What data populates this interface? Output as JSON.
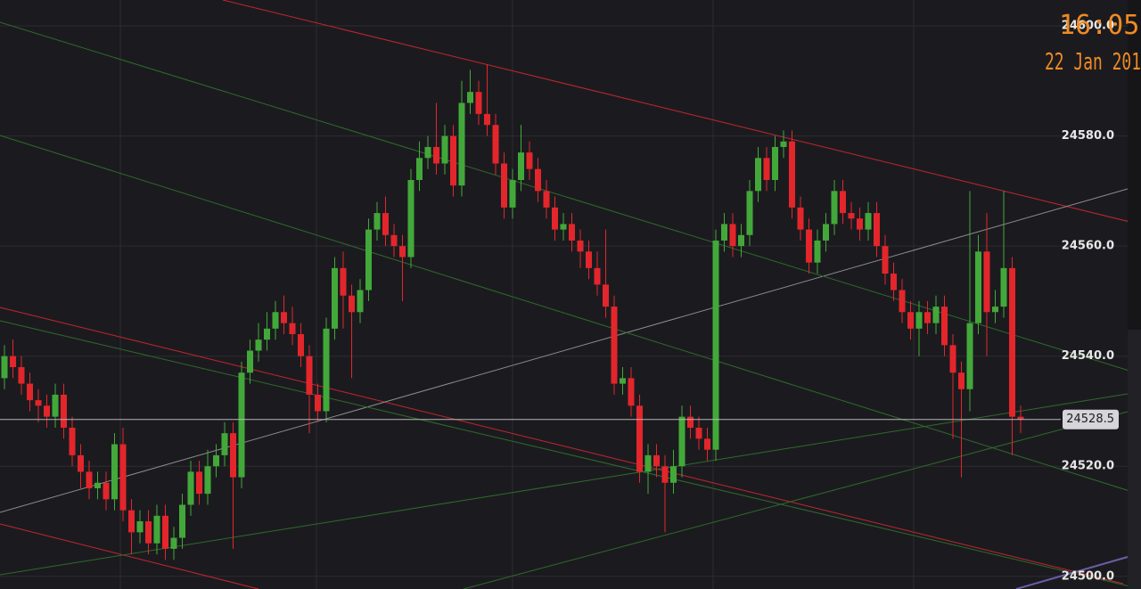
{
  "chart_data": {
    "type": "candlestick",
    "ylim": [
      24497.7,
      24604.7
    ],
    "yticks": [
      {
        "value": 24500,
        "label": "24500.0"
      },
      {
        "value": 24520,
        "label": "24520.0"
      },
      {
        "value": 24540,
        "label": "24540.0"
      },
      {
        "value": 24560,
        "label": "24560.0"
      },
      {
        "value": 24580,
        "label": "24580.0"
      },
      {
        "value": 24600,
        "label": "24600.0"
      }
    ],
    "grid": true,
    "up_color": "#43a83a",
    "down_color": "#e3262b",
    "last_price": 24528.5,
    "annotations": [
      "16:05",
      "22 Jan 201"
    ],
    "open": [
      24536,
      24540,
      24538,
      24535,
      24532,
      24531,
      24529,
      24533,
      24527,
      24522,
      24519,
      24516,
      24517,
      24514,
      24524,
      24512,
      24508,
      24510,
      24506,
      24511,
      24505,
      24507,
      24513,
      24519,
      24515,
      24520,
      24522,
      24526,
      24518,
      24537,
      24541,
      24543,
      24545,
      24548,
      24546,
      24544,
      24540,
      24533,
      24530,
      24545,
      24556,
      24551,
      24548,
      24552,
      24563,
      24566,
      24562,
      24560,
      24558,
      24572,
      24576,
      24578,
      24575,
      24580,
      24571,
      24586,
      24588,
      24584,
      24582,
      24575,
      24567,
      24572,
      24577,
      24574,
      24570,
      24567,
      24563,
      24564,
      24561,
      24559,
      24556,
      24553,
      24549,
      24535,
      24536,
      24531,
      24519,
      24522,
      24520,
      24517,
      24520,
      24529,
      24527,
      24525,
      24523,
      24561,
      24564,
      24560,
      24562,
      24570,
      24576,
      24572,
      24578,
      24579,
      24567,
      24563,
      24557,
      24561,
      24564,
      24570,
      24566,
      24565,
      24563,
      24566,
      24560,
      24555,
      24552,
      24548,
      24545,
      24548,
      24546,
      24549,
      24542,
      24537,
      24534,
      24546,
      24559,
      24548,
      24549,
      24556,
      24529
    ],
    "high": [
      24542,
      24543,
      24540,
      24537,
      24534,
      24533,
      24535,
      24535,
      24529,
      24524,
      24521,
      24519,
      24519,
      24526,
      24527,
      24514,
      24512,
      24512,
      24513,
      24513,
      24509,
      24515,
      24521,
      24521,
      24523,
      24524,
      24528,
      24528,
      24539,
      24543,
      24546,
      24548,
      24550,
      24551,
      24549,
      24546,
      24542,
      24535,
      24547,
      24558,
      24559,
      24553,
      24554,
      24565,
      24568,
      24569,
      24564,
      24562,
      24574,
      24579,
      24580,
      24586,
      24582,
      24582,
      24590,
      24592,
      24590,
      24593,
      24584,
      24577,
      24574,
      24582,
      24579,
      24576,
      24572,
      24569,
      24566,
      24566,
      24563,
      24561,
      24559,
      24563,
      24551,
      24538,
      24538,
      24533,
      24524,
      24524,
      24522,
      24523,
      24531,
      24531,
      24529,
      24527,
      24563,
      24566,
      24566,
      24564,
      24572,
      24578,
      24578,
      24580,
      24581,
      24581,
      24569,
      24565,
      24563,
      24566,
      24572,
      24572,
      24568,
      24567,
      24568,
      24568,
      24562,
      24557,
      24554,
      24550,
      24550,
      24550,
      24551,
      24551,
      24544,
      24539,
      24570,
      24562,
      24566,
      24552,
      24570,
      24558,
      24531
    ],
    "low": [
      24534,
      24536,
      24533,
      24530,
      24528,
      24527,
      24527,
      24525,
      24520,
      24516,
      24514,
      24514,
      24512,
      24512,
      24510,
      24504,
      24506,
      24504,
      24504,
      24503,
      24503,
      24505,
      24511,
      24513,
      24513,
      24518,
      24520,
      24505,
      24516,
      24535,
      24539,
      24541,
      24543,
      24544,
      24542,
      24538,
      24526,
      24528,
      24528,
      24543,
      24545,
      24536,
      24546,
      24550,
      24561,
      24560,
      24558,
      24550,
      24556,
      24570,
      24574,
      24573,
      24573,
      24569,
      24569,
      24584,
      24582,
      24580,
      24573,
      24565,
      24565,
      24570,
      24572,
      24568,
      24565,
      24561,
      24561,
      24559,
      24556,
      24554,
      24551,
      24547,
      24533,
      24533,
      24529,
      24517,
      24515,
      24518,
      24508,
      24515,
      24518,
      24525,
      24523,
      24521,
      24521,
      24559,
      24558,
      24558,
      24560,
      24568,
      24570,
      24570,
      24576,
      24565,
      24561,
      24555,
      24555,
      24559,
      24562,
      24564,
      24563,
      24561,
      24561,
      24558,
      24553,
      24550,
      24546,
      24543,
      24540,
      24544,
      24544,
      24540,
      24525,
      24518,
      24530,
      24544,
      24540,
      24546,
      24547,
      24522,
      24526
    ],
    "close": [
      24540,
      24538,
      24535,
      24532,
      24531,
      24529,
      24533,
      24527,
      24522,
      24519,
      24516,
      24517,
      24514,
      24524,
      24512,
      24508,
      24510,
      24506,
      24511,
      24505,
      24507,
      24513,
      24519,
      24515,
      24520,
      24522,
      24526,
      24518,
      24537,
      24541,
      24543,
      24545,
      24548,
      24546,
      24544,
      24540,
      24533,
      24530,
      24545,
      24556,
      24551,
      24548,
      24552,
      24563,
      24566,
      24562,
      24560,
      24558,
      24572,
      24576,
      24578,
      24575,
      24580,
      24571,
      24586,
      24588,
      24584,
      24582,
      24575,
      24567,
      24572,
      24577,
      24574,
      24570,
      24567,
      24563,
      24564,
      24561,
      24559,
      24556,
      24553,
      24549,
      24535,
      24536,
      24531,
      24519,
      24522,
      24520,
      24517,
      24520,
      24529,
      24527,
      24525,
      24523,
      24561,
      24564,
      24560,
      24562,
      24570,
      24576,
      24572,
      24578,
      24579,
      24567,
      24563,
      24557,
      24561,
      24564,
      24570,
      24566,
      24565,
      24563,
      24566,
      24560,
      24555,
      24552,
      24548,
      24545,
      24548,
      24546,
      24549,
      24542,
      24537,
      24534,
      24546,
      24559,
      24548,
      24549,
      24556,
      24529,
      24528.5
    ]
  }
}
